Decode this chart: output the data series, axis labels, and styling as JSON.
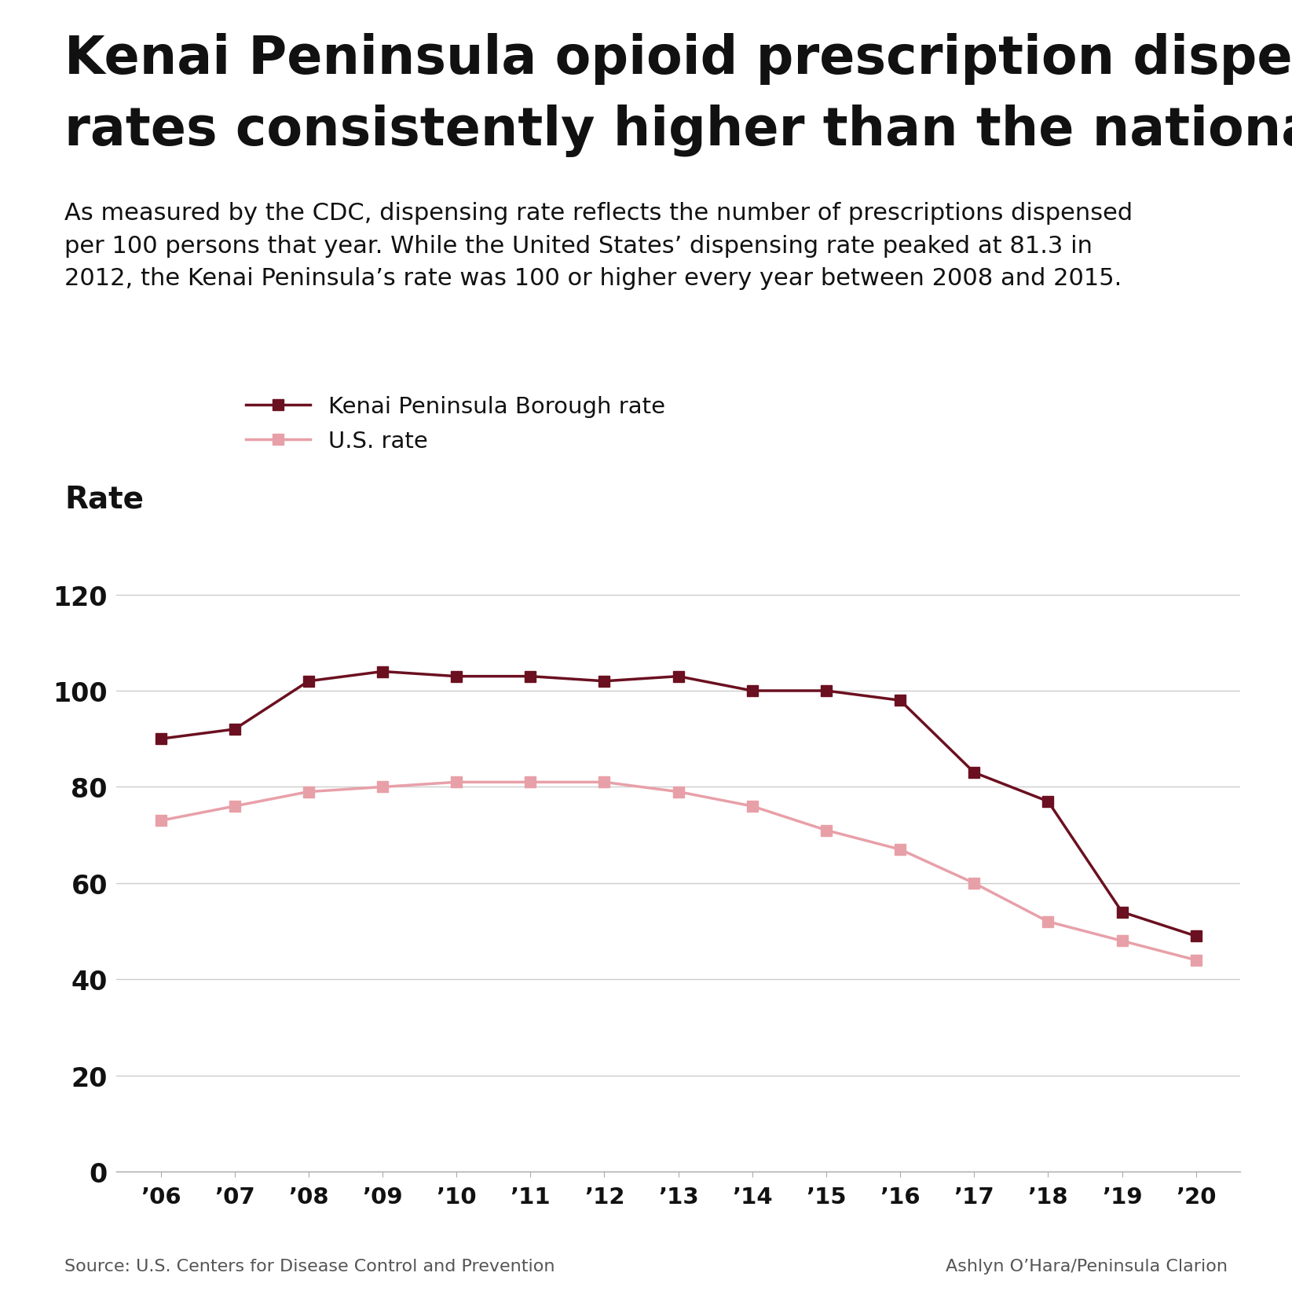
{
  "title_line1": "Kenai Peninsula opioid prescription dispensing",
  "title_line2": "rates consistently higher than the national average",
  "subtitle": "As measured by the CDC, dispensing rate reflects the number of prescriptions dispensed\nper 100 persons that year. While the United States’ dispensing rate peaked at 81.3 in\n2012, the Kenai Peninsula’s rate was 100 or higher every year between 2008 and 2015.",
  "ylabel": "Rate",
  "source_left": "Source: U.S. Centers for Disease Control and Prevention",
  "source_right": "Ashlyn O’Hara/Peninsula Clarion",
  "years": [
    2006,
    2007,
    2008,
    2009,
    2010,
    2011,
    2012,
    2013,
    2014,
    2015,
    2016,
    2017,
    2018,
    2019,
    2020
  ],
  "kenai_data": [
    90,
    92,
    102,
    104,
    103,
    103,
    102,
    103,
    100,
    100,
    98,
    83,
    77,
    54,
    49
  ],
  "us_data": [
    73,
    76,
    79,
    80,
    81,
    81,
    81,
    79,
    76,
    71,
    67,
    60,
    52,
    48,
    44
  ],
  "kenai_color": "#6B1020",
  "us_color": "#E8A0A8",
  "yticks": [
    0,
    20,
    40,
    60,
    80,
    100,
    120
  ],
  "ylim": [
    0,
    130
  ],
  "background_color": "#FFFFFF",
  "legend_kenai": "Kenai Peninsula Borough rate",
  "legend_us": "U.S. rate",
  "marker_size": 10,
  "line_width": 2.5
}
